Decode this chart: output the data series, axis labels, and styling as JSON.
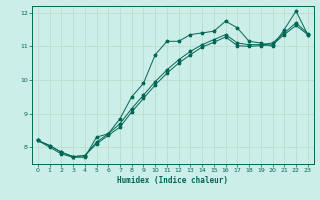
{
  "xlabel": "Humidex (Indice chaleur)",
  "background_color": "#cceee8",
  "grid_color": "#bbddcc",
  "line_color": "#006655",
  "xlim": [
    -0.5,
    23.5
  ],
  "ylim": [
    7.5,
    12.2
  ],
  "yticks": [
    8,
    9,
    10,
    11,
    12
  ],
  "xticks": [
    0,
    1,
    2,
    3,
    4,
    5,
    6,
    7,
    8,
    9,
    10,
    11,
    12,
    13,
    14,
    15,
    16,
    17,
    18,
    19,
    20,
    21,
    22,
    23
  ],
  "series1_x": [
    0,
    1,
    2,
    3,
    4,
    5,
    6,
    7,
    8,
    9,
    10,
    11,
    12,
    13,
    14,
    15,
    16,
    17,
    18,
    19,
    20,
    21,
    22,
    23
  ],
  "series1_y": [
    8.2,
    8.0,
    7.8,
    7.7,
    7.7,
    8.3,
    8.4,
    8.85,
    9.5,
    9.9,
    10.75,
    11.15,
    11.15,
    11.35,
    11.4,
    11.45,
    11.75,
    11.55,
    11.15,
    11.1,
    11.0,
    11.5,
    12.05,
    11.35
  ],
  "series2_x": [
    0,
    1,
    2,
    3,
    4,
    5,
    6,
    7,
    8,
    9,
    10,
    11,
    12,
    13,
    14,
    15,
    16,
    17,
    18,
    19,
    20,
    21,
    22,
    23
  ],
  "series2_y": [
    8.2,
    8.05,
    7.85,
    7.72,
    7.75,
    8.15,
    8.4,
    8.7,
    9.15,
    9.55,
    9.95,
    10.3,
    10.6,
    10.85,
    11.05,
    11.2,
    11.35,
    11.1,
    11.05,
    11.05,
    11.1,
    11.4,
    11.7,
    11.38
  ],
  "series3_x": [
    0,
    1,
    2,
    3,
    4,
    5,
    6,
    7,
    8,
    9,
    10,
    11,
    12,
    13,
    14,
    15,
    16,
    17,
    18,
    19,
    20,
    21,
    22,
    23
  ],
  "series3_y": [
    8.2,
    8.05,
    7.85,
    7.72,
    7.75,
    8.1,
    8.35,
    8.6,
    9.05,
    9.45,
    9.85,
    10.2,
    10.5,
    10.75,
    10.98,
    11.12,
    11.28,
    11.02,
    11.0,
    11.02,
    11.05,
    11.35,
    11.62,
    11.35
  ]
}
